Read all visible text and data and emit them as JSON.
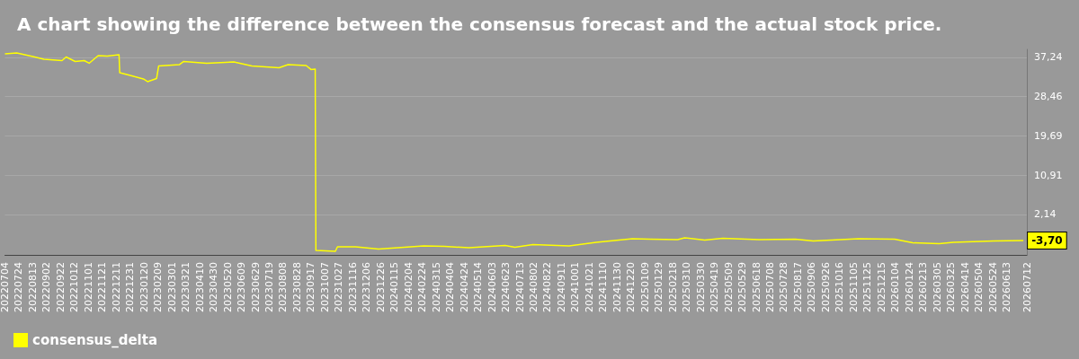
{
  "chart_data": {
    "type": "line",
    "title": "A chart showing the difference between the consensus forecast and the actual stock price.",
    "x": [
      "2022-07-04",
      "2022-07-21",
      "2022-08-16",
      "2022-08-29",
      "2022-09-24",
      "2022-09-30",
      "2022-10-13",
      "2022-10-26",
      "2022-11-02",
      "2022-11-15",
      "2022-11-28",
      "2022-12-15",
      "2022-12-16",
      "2022-12-31",
      "2023-01-19",
      "2023-01-25",
      "2023-02-07",
      "2023-02-10",
      "2023-03-12",
      "2023-03-18",
      "2023-04-20",
      "2023-05-29",
      "2023-06-24",
      "2023-08-02",
      "2023-08-15",
      "2023-09-10",
      "2023-09-17",
      "2023-09-23",
      "2023-09-24",
      "2023-10-22",
      "2023-10-25",
      "2023-11-20",
      "2023-12-23",
      "2024-02-26",
      "2024-03-27",
      "2024-05-01",
      "2024-06-22",
      "2024-07-06",
      "2024-08-01",
      "2024-09-22",
      "2024-10-31",
      "2024-12-22",
      "2025-01-17",
      "2025-02-25",
      "2025-03-07",
      "2025-04-05",
      "2025-05-01",
      "2025-06-22",
      "2025-08-13",
      "2025-09-08",
      "2025-11-12",
      "2026-01-03",
      "2026-01-29",
      "2026-03-08",
      "2026-03-28",
      "2026-05-25",
      "2026-07-07"
    ],
    "series": [
      {
        "name": "consensus_delta",
        "color": "#ffff00",
        "values": [
          38.0,
          38.2,
          37.3,
          36.8,
          36.5,
          37.3,
          36.3,
          36.5,
          35.9,
          37.6,
          37.5,
          37.8,
          33.8,
          33.2,
          32.4,
          31.8,
          32.5,
          35.3,
          35.6,
          36.3,
          35.9,
          36.2,
          35.3,
          34.9,
          35.6,
          35.4,
          34.5,
          34.6,
          -5.9,
          -6.1,
          -5.1,
          -5.1,
          -5.6,
          -4.9,
          -5.0,
          -5.3,
          -4.8,
          -5.2,
          -4.6,
          -4.9,
          -4.1,
          -3.3,
          -3.4,
          -3.5,
          -3.1,
          -3.6,
          -3.2,
          -3.5,
          -3.4,
          -3.8,
          -3.3,
          -3.4,
          -4.2,
          -4.4,
          -4.1,
          -3.8,
          -3.7
        ],
        "value_labels": [
          null,
          null,
          null,
          null,
          null,
          null,
          null,
          null,
          null,
          null,
          null,
          null,
          null,
          null,
          null,
          null,
          null,
          null,
          null,
          null,
          null,
          null,
          null,
          null,
          null,
          null,
          null,
          null,
          null,
          null,
          null,
          null,
          null,
          null,
          null,
          null,
          null,
          null,
          null,
          null,
          null,
          null,
          null,
          null,
          null,
          null,
          null,
          null,
          null,
          null,
          null,
          null,
          null,
          null,
          null,
          null,
          "-3,70"
        ]
      }
    ],
    "xlim": [
      "2022-07-04",
      "2026-07-12"
    ],
    "xticks": [
      {
        "value": "2022-07-04",
        "label": "20220704"
      },
      {
        "value": "2022-07-24",
        "label": "20220724"
      },
      {
        "value": "2022-08-13",
        "label": "20220813"
      },
      {
        "value": "2022-09-02",
        "label": "20220902"
      },
      {
        "value": "2022-09-22",
        "label": "20220922"
      },
      {
        "value": "2022-10-12",
        "label": "20221012"
      },
      {
        "value": "2022-11-01",
        "label": "20221101"
      },
      {
        "value": "2022-11-21",
        "label": "20221121"
      },
      {
        "value": "2022-12-11",
        "label": "20221211"
      },
      {
        "value": "2022-12-31",
        "label": "20221231"
      },
      {
        "value": "2023-01-20",
        "label": "20230120"
      },
      {
        "value": "2023-02-09",
        "label": "20230209"
      },
      {
        "value": "2023-03-01",
        "label": "20230301"
      },
      {
        "value": "2023-03-21",
        "label": "20230321"
      },
      {
        "value": "2023-04-10",
        "label": "20230410"
      },
      {
        "value": "2023-04-30",
        "label": "20230430"
      },
      {
        "value": "2023-05-20",
        "label": "20230520"
      },
      {
        "value": "2023-06-09",
        "label": "20230609"
      },
      {
        "value": "2023-06-29",
        "label": "20230629"
      },
      {
        "value": "2023-07-19",
        "label": "20230719"
      },
      {
        "value": "2023-08-08",
        "label": "20230808"
      },
      {
        "value": "2023-08-28",
        "label": "20230828"
      },
      {
        "value": "2023-09-17",
        "label": "20230917"
      },
      {
        "value": "2023-10-07",
        "label": "20231007"
      },
      {
        "value": "2023-10-27",
        "label": "20231027"
      },
      {
        "value": "2023-11-16",
        "label": "20231116"
      },
      {
        "value": "2023-12-06",
        "label": "20231206"
      },
      {
        "value": "2023-12-26",
        "label": "20231226"
      },
      {
        "value": "2024-01-15",
        "label": "20240115"
      },
      {
        "value": "2024-02-04",
        "label": "20240204"
      },
      {
        "value": "2024-02-24",
        "label": "20240224"
      },
      {
        "value": "2024-03-15",
        "label": "20240315"
      },
      {
        "value": "2024-04-04",
        "label": "20240404"
      },
      {
        "value": "2024-04-24",
        "label": "20240424"
      },
      {
        "value": "2024-05-14",
        "label": "20240514"
      },
      {
        "value": "2024-06-03",
        "label": "20240603"
      },
      {
        "value": "2024-06-23",
        "label": "20240623"
      },
      {
        "value": "2024-07-13",
        "label": "20240713"
      },
      {
        "value": "2024-08-02",
        "label": "20240802"
      },
      {
        "value": "2024-08-22",
        "label": "20240822"
      },
      {
        "value": "2024-09-11",
        "label": "20240911"
      },
      {
        "value": "2024-10-01",
        "label": "20241001"
      },
      {
        "value": "2024-10-21",
        "label": "20241021"
      },
      {
        "value": "2024-11-10",
        "label": "20241110"
      },
      {
        "value": "2024-11-30",
        "label": "20241130"
      },
      {
        "value": "2024-12-20",
        "label": "20241220"
      },
      {
        "value": "2025-01-09",
        "label": "20250109"
      },
      {
        "value": "2025-01-29",
        "label": "20250129"
      },
      {
        "value": "2025-02-18",
        "label": "20250218"
      },
      {
        "value": "2025-03-10",
        "label": "20250310"
      },
      {
        "value": "2025-03-30",
        "label": "20250330"
      },
      {
        "value": "2025-04-19",
        "label": "20250419"
      },
      {
        "value": "2025-05-09",
        "label": "20250509"
      },
      {
        "value": "2025-05-29",
        "label": "20250529"
      },
      {
        "value": "2025-06-18",
        "label": "20250618"
      },
      {
        "value": "2025-07-08",
        "label": "20250708"
      },
      {
        "value": "2025-07-28",
        "label": "20250728"
      },
      {
        "value": "2025-08-17",
        "label": "20250817"
      },
      {
        "value": "2025-09-06",
        "label": "20250906"
      },
      {
        "value": "2025-09-26",
        "label": "20250926"
      },
      {
        "value": "2025-10-16",
        "label": "20251016"
      },
      {
        "value": "2025-11-05",
        "label": "20251105"
      },
      {
        "value": "2025-11-25",
        "label": "20251125"
      },
      {
        "value": "2025-12-15",
        "label": "20251215"
      },
      {
        "value": "2026-01-04",
        "label": "20260104"
      },
      {
        "value": "2026-01-24",
        "label": "20260124"
      },
      {
        "value": "2026-02-13",
        "label": "20260213"
      },
      {
        "value": "2026-03-05",
        "label": "20260305"
      },
      {
        "value": "2026-03-25",
        "label": "20260325"
      },
      {
        "value": "2026-04-14",
        "label": "20260414"
      },
      {
        "value": "2026-05-04",
        "label": "20260504"
      },
      {
        "value": "2026-05-24",
        "label": "20260524"
      },
      {
        "value": "2026-06-13",
        "label": "20260613"
      },
      {
        "value": "2026-07-12",
        "label": "20260712"
      }
    ],
    "ylim": [
      -6.9,
      39.0
    ],
    "yticks": [
      {
        "value": 2.14,
        "label": "2,14"
      },
      {
        "value": 10.91,
        "label": "10,91"
      },
      {
        "value": 19.69,
        "label": "19,69"
      },
      {
        "value": 28.46,
        "label": "28,46"
      },
      {
        "value": 37.24,
        "label": "37,24"
      }
    ],
    "grid": "y",
    "legend": "bottom left",
    "marker": "none",
    "line_style": "solid"
  }
}
